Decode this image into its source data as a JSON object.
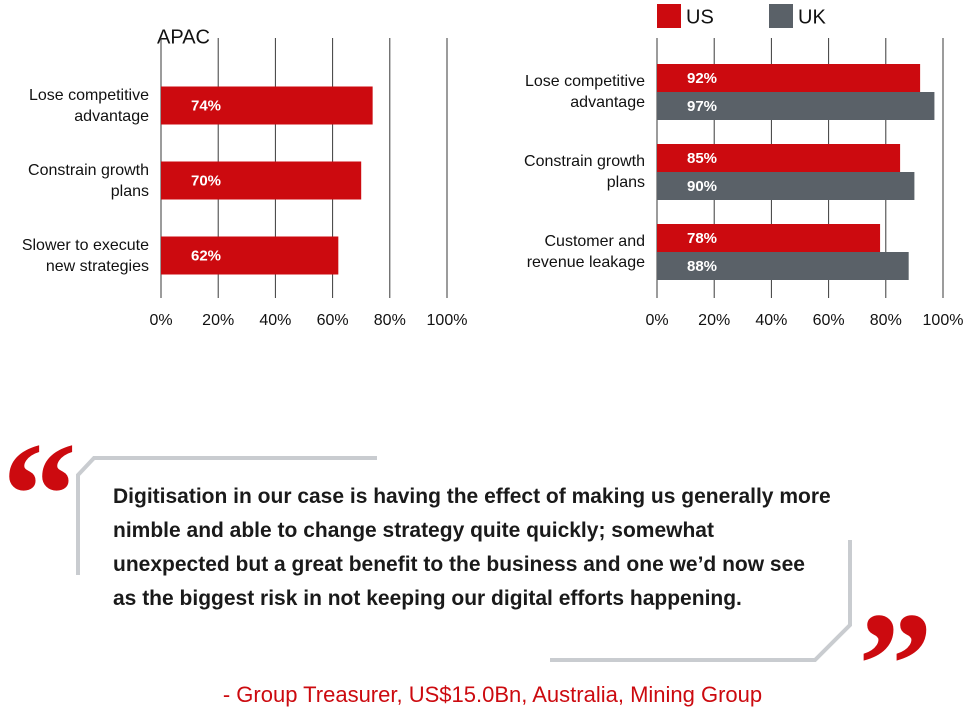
{
  "chart_data": [
    {
      "type": "hbar",
      "title": "APAC",
      "categories": [
        "Lose competitive advantage",
        "Constrain growth plans",
        "Slower to execute new strategies"
      ],
      "values": [
        74,
        70,
        62
      ],
      "value_labels": [
        "74%",
        "70%",
        "62%"
      ],
      "color": "#cc0a0f",
      "xlim": [
        0,
        100
      ],
      "xticks": [
        {
          "value": 0,
          "label": "0%"
        },
        {
          "value": 20,
          "label": "20%"
        },
        {
          "value": 40,
          "label": "40%"
        },
        {
          "value": 60,
          "label": "60%"
        },
        {
          "value": 80,
          "label": "80%"
        },
        {
          "value": 100,
          "label": "100%"
        }
      ],
      "grid": true
    },
    {
      "type": "hbar",
      "categories": [
        "Lose competitive advantage",
        "Constrain growth plans",
        "Customer and revenue leakage"
      ],
      "series": [
        {
          "name": "US",
          "color": "#cc0a0f",
          "values": [
            92,
            85,
            78
          ],
          "value_labels": [
            "92%",
            "85%",
            "78%"
          ]
        },
        {
          "name": "UK",
          "color": "#5a6168",
          "values": [
            97,
            90,
            88
          ],
          "value_labels": [
            "97%",
            "90%",
            "88%"
          ]
        }
      ],
      "xlim": [
        0,
        100
      ],
      "xticks": [
        {
          "value": 0,
          "label": "0%"
        },
        {
          "value": 20,
          "label": "20%"
        },
        {
          "value": 40,
          "label": "40%"
        },
        {
          "value": 60,
          "label": "60%"
        },
        {
          "value": 80,
          "label": "80%"
        },
        {
          "value": 100,
          "label": "100%"
        }
      ],
      "grid": true,
      "legend": "top"
    }
  ],
  "quote": {
    "open_mark": "“",
    "close_mark": "”",
    "text": "Digitisation in our case is having the effect of making us generally more nimble and able to change strategy quite quickly; somewhat unexpected but a great benefit to the business and one we’d now see as the biggest risk in not keeping our digital efforts happening.",
    "attribution": "- Group Treasurer, US$15.0Bn, Australia, Mining Group"
  }
}
